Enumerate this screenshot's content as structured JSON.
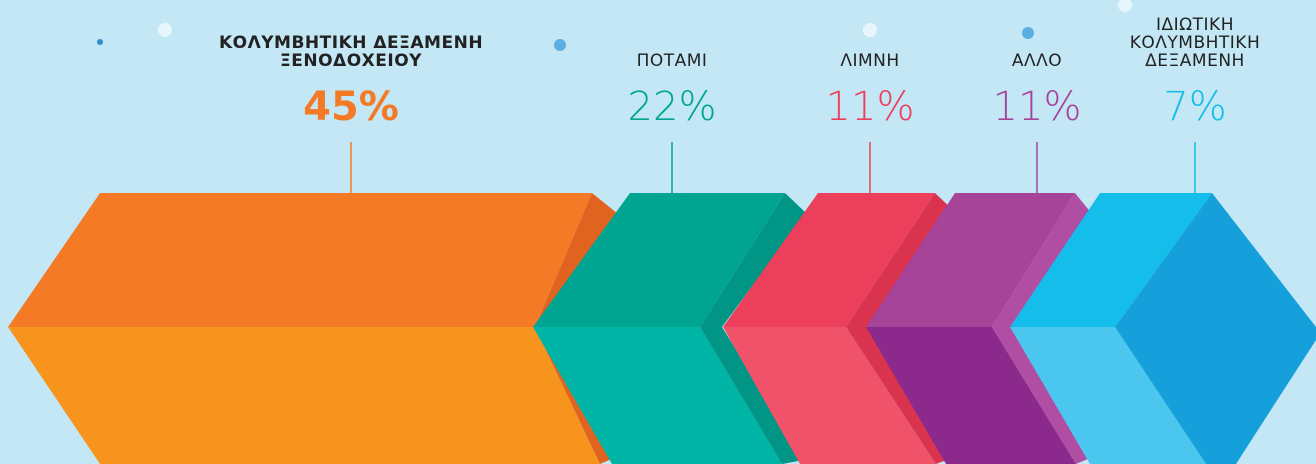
{
  "chart_data": {
    "type": "prism",
    "categories": [
      "ΚΟΛΥΜΒΗΤΙΚΗ ΔΕΞΑΜΕΝΗ ΞΕΝΟΔΟΧΕΙΟΥ",
      "ΠΟΤΑΜΙ",
      "ΛΙΜΝΗ",
      "ΑΛΛΟ",
      "ΙΔΙΩΤΙΚΗ ΚΟΛΥΜΒΗΤΙΚΗ ΔΕΞΑΜΕΝΗ"
    ],
    "values": [
      45,
      22,
      11,
      11,
      7
    ],
    "value_labels": [
      "45%",
      "22%",
      "11%",
      "11%",
      "7%"
    ],
    "colors": [
      "#f47a26",
      "#00a591",
      "#ec3f5c",
      "#a6449a",
      "#14bdea"
    ]
  }
}
